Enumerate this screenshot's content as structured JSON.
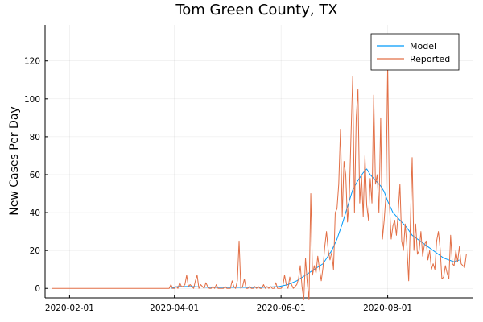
{
  "chart_data": {
    "type": "line",
    "title": "Tom Green County, TX",
    "xlabel": "",
    "ylabel": "New Cases Per Day",
    "grid": true,
    "legend_position": "top-right",
    "x_start_date": "2020-01-22",
    "x_range_days": [
      -4,
      241
    ],
    "ylim": [
      -5,
      139
    ],
    "x_ticks": [
      {
        "label": "2020-02-01",
        "day": 10
      },
      {
        "label": "2020-04-01",
        "day": 70
      },
      {
        "label": "2020-06-01",
        "day": 131
      },
      {
        "label": "2020-08-01",
        "day": 192
      }
    ],
    "y_ticks": [
      0,
      20,
      40,
      60,
      80,
      100,
      120
    ],
    "colors": {
      "model": "#009AFA",
      "reported": "#E26F46"
    },
    "series": [
      {
        "name": "Model",
        "color": "#009AFA",
        "points": [
          [
            68,
            0
          ],
          [
            72,
            1
          ],
          [
            80,
            1
          ],
          [
            90,
            0.5
          ],
          [
            100,
            0.5
          ],
          [
            110,
            0.5
          ],
          [
            120,
            0.5
          ],
          [
            130,
            1
          ],
          [
            135,
            2
          ],
          [
            140,
            4
          ],
          [
            145,
            7
          ],
          [
            150,
            10
          ],
          [
            155,
            13
          ],
          [
            160,
            20
          ],
          [
            163,
            26
          ],
          [
            166,
            34
          ],
          [
            169,
            43
          ],
          [
            172,
            52
          ],
          [
            175,
            57
          ],
          [
            178,
            61
          ],
          [
            180,
            63
          ],
          [
            182,
            60
          ],
          [
            185,
            57
          ],
          [
            188,
            54
          ],
          [
            190,
            51
          ],
          [
            192,
            46
          ],
          [
            195,
            40
          ],
          [
            198,
            37
          ],
          [
            200,
            35
          ],
          [
            203,
            32
          ],
          [
            206,
            28
          ],
          [
            209,
            26
          ],
          [
            212,
            24
          ],
          [
            215,
            22
          ],
          [
            218,
            20
          ],
          [
            221,
            18
          ],
          [
            224,
            16
          ],
          [
            227,
            15
          ],
          [
            230,
            14
          ],
          [
            233,
            15
          ]
        ]
      },
      {
        "name": "Reported",
        "color": "#E26F46",
        "points": [
          [
            0,
            0
          ],
          [
            60,
            0
          ],
          [
            67,
            0
          ],
          [
            68,
            2
          ],
          [
            69,
            0
          ],
          [
            70,
            0
          ],
          [
            71,
            1
          ],
          [
            72,
            0
          ],
          [
            73,
            3
          ],
          [
            74,
            1
          ],
          [
            75,
            1
          ],
          [
            76,
            2
          ],
          [
            77,
            7
          ],
          [
            78,
            1
          ],
          [
            79,
            2
          ],
          [
            80,
            1
          ],
          [
            81,
            0
          ],
          [
            82,
            4
          ],
          [
            83,
            7
          ],
          [
            84,
            0
          ],
          [
            85,
            2
          ],
          [
            86,
            1
          ],
          [
            87,
            0
          ],
          [
            88,
            3
          ],
          [
            89,
            1
          ],
          [
            90,
            0
          ],
          [
            91,
            0
          ],
          [
            92,
            1
          ],
          [
            93,
            0
          ],
          [
            94,
            2
          ],
          [
            95,
            0
          ],
          [
            96,
            0
          ],
          [
            97,
            0
          ],
          [
            98,
            0
          ],
          [
            99,
            1
          ],
          [
            100,
            0
          ],
          [
            101,
            0
          ],
          [
            102,
            0
          ],
          [
            103,
            4
          ],
          [
            104,
            1
          ],
          [
            105,
            0
          ],
          [
            106,
            4
          ],
          [
            107,
            25
          ],
          [
            108,
            0
          ],
          [
            109,
            1
          ],
          [
            110,
            5
          ],
          [
            111,
            0
          ],
          [
            112,
            0
          ],
          [
            113,
            1
          ],
          [
            114,
            0
          ],
          [
            115,
            0
          ],
          [
            116,
            1
          ],
          [
            117,
            0
          ],
          [
            118,
            1
          ],
          [
            119,
            0
          ],
          [
            120,
            0
          ],
          [
            121,
            2
          ],
          [
            122,
            0
          ],
          [
            123,
            1
          ],
          [
            124,
            0
          ],
          [
            125,
            1
          ],
          [
            126,
            0
          ],
          [
            127,
            0
          ],
          [
            128,
            3
          ],
          [
            129,
            0
          ],
          [
            130,
            0
          ],
          [
            131,
            0
          ],
          [
            132,
            1
          ],
          [
            133,
            7
          ],
          [
            134,
            2
          ],
          [
            135,
            0
          ],
          [
            136,
            6
          ],
          [
            137,
            2
          ],
          [
            138,
            0
          ],
          [
            139,
            1
          ],
          [
            140,
            2
          ],
          [
            141,
            5
          ],
          [
            142,
            12
          ],
          [
            143,
            1
          ],
          [
            144,
            -6
          ],
          [
            145,
            16
          ],
          [
            146,
            3
          ],
          [
            147,
            -6
          ],
          [
            148,
            50
          ],
          [
            149,
            7
          ],
          [
            150,
            12
          ],
          [
            151,
            8
          ],
          [
            152,
            17
          ],
          [
            153,
            10
          ],
          [
            154,
            4
          ],
          [
            155,
            11
          ],
          [
            156,
            22
          ],
          [
            157,
            30
          ],
          [
            158,
            20
          ],
          [
            159,
            15
          ],
          [
            160,
            19
          ],
          [
            161,
            10
          ],
          [
            162,
            40
          ],
          [
            163,
            42
          ],
          [
            164,
            55
          ],
          [
            165,
            84
          ],
          [
            166,
            38
          ],
          [
            167,
            67
          ],
          [
            168,
            60
          ],
          [
            169,
            35
          ],
          [
            170,
            47
          ],
          [
            171,
            80
          ],
          [
            172,
            112
          ],
          [
            173,
            40
          ],
          [
            174,
            90
          ],
          [
            175,
            105
          ],
          [
            176,
            45
          ],
          [
            177,
            60
          ],
          [
            178,
            38
          ],
          [
            179,
            70
          ],
          [
            180,
            44
          ],
          [
            181,
            36
          ],
          [
            182,
            58
          ],
          [
            183,
            45
          ],
          [
            184,
            102
          ],
          [
            185,
            55
          ],
          [
            186,
            60
          ],
          [
            187,
            40
          ],
          [
            188,
            90
          ],
          [
            189,
            26
          ],
          [
            190,
            36
          ],
          [
            191,
            49
          ],
          [
            192,
            118
          ],
          [
            193,
            44
          ],
          [
            194,
            26
          ],
          [
            195,
            33
          ],
          [
            196,
            36
          ],
          [
            197,
            28
          ],
          [
            198,
            40
          ],
          [
            199,
            55
          ],
          [
            200,
            25
          ],
          [
            201,
            20
          ],
          [
            202,
            34
          ],
          [
            203,
            22
          ],
          [
            204,
            4
          ],
          [
            205,
            35
          ],
          [
            206,
            69
          ],
          [
            207,
            20
          ],
          [
            208,
            34
          ],
          [
            209,
            18
          ],
          [
            210,
            20
          ],
          [
            211,
            30
          ],
          [
            212,
            17
          ],
          [
            213,
            23
          ],
          [
            214,
            25
          ],
          [
            215,
            15
          ],
          [
            216,
            20
          ],
          [
            217,
            10
          ],
          [
            218,
            13
          ],
          [
            219,
            10
          ],
          [
            220,
            25
          ],
          [
            221,
            30
          ],
          [
            222,
            21
          ],
          [
            223,
            5
          ],
          [
            224,
            6
          ],
          [
            225,
            12
          ],
          [
            226,
            8
          ],
          [
            227,
            5
          ],
          [
            228,
            28
          ],
          [
            229,
            13
          ],
          [
            230,
            12
          ],
          [
            231,
            20
          ],
          [
            232,
            14
          ],
          [
            233,
            22
          ],
          [
            234,
            13
          ],
          [
            235,
            12
          ],
          [
            236,
            11
          ],
          [
            237,
            18
          ]
        ]
      }
    ]
  }
}
